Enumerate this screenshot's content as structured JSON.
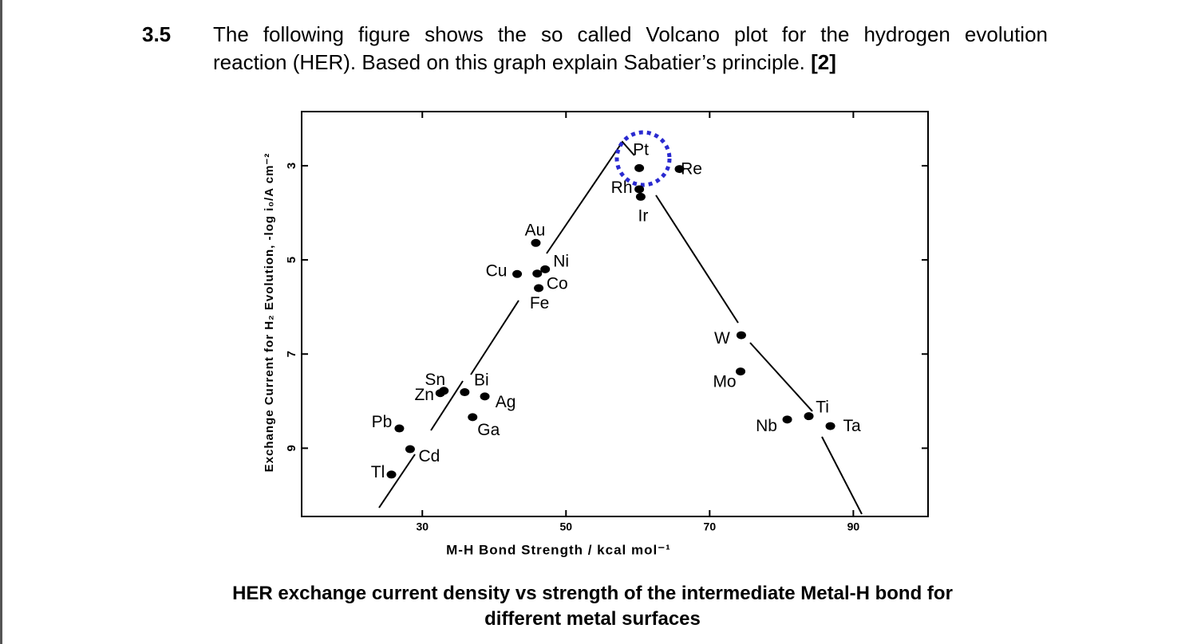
{
  "question": {
    "number": "3.5",
    "text_line1": "The following figure shows the so called Volcano plot for the hydrogen evolution",
    "text_line2": "reaction (HER). Based on this graph explain Sabatier’s principle.",
    "marks": "[2]"
  },
  "chart_data": {
    "type": "scatter",
    "xlabel": "M-H Bond Strength / kcal mol⁻¹",
    "ylabel": "Exchange Current for H₂ Evolution, -log i₀/A cm⁻²",
    "labels": [
      "Pt",
      "Re",
      "Rh",
      "Ir",
      "Au",
      "Ni",
      "Cu",
      "Co",
      "Fe",
      "W",
      "Mo",
      "Sn",
      "Zn",
      "Bi",
      "Ag",
      "Ga",
      "Pb",
      "Cd",
      "Tl",
      "Nb",
      "Ti",
      "Ta"
    ],
    "x": [
      60.2,
      65.8,
      60.2,
      60.4,
      45.8,
      47.1,
      43.2,
      46.0,
      46.2,
      74.4,
      74.3,
      33.0,
      32.5,
      35.9,
      38.7,
      37.0,
      26.8,
      28.3,
      25.7,
      80.8,
      83.8,
      86.8
    ],
    "values": [
      3.05,
      3.07,
      3.5,
      3.66,
      4.64,
      5.2,
      5.3,
      5.29,
      5.6,
      6.6,
      7.37,
      7.78,
      7.83,
      7.81,
      7.9,
      8.34,
      8.58,
      9.02,
      9.56,
      8.39,
      8.32,
      8.53
    ],
    "color": "#000000",
    "xlim": [
      13.2,
      100.4
    ],
    "ylim": [
      1.85,
      10.45
    ],
    "y_inverted": true,
    "xticks": [
      30,
      50,
      70,
      90
    ],
    "yticks": [
      3,
      5,
      7,
      9
    ]
  },
  "caption": {
    "line1": "HER exchange current density vs strength of the intermediate Metal-H bond for",
    "line2": "different metal surfaces"
  }
}
